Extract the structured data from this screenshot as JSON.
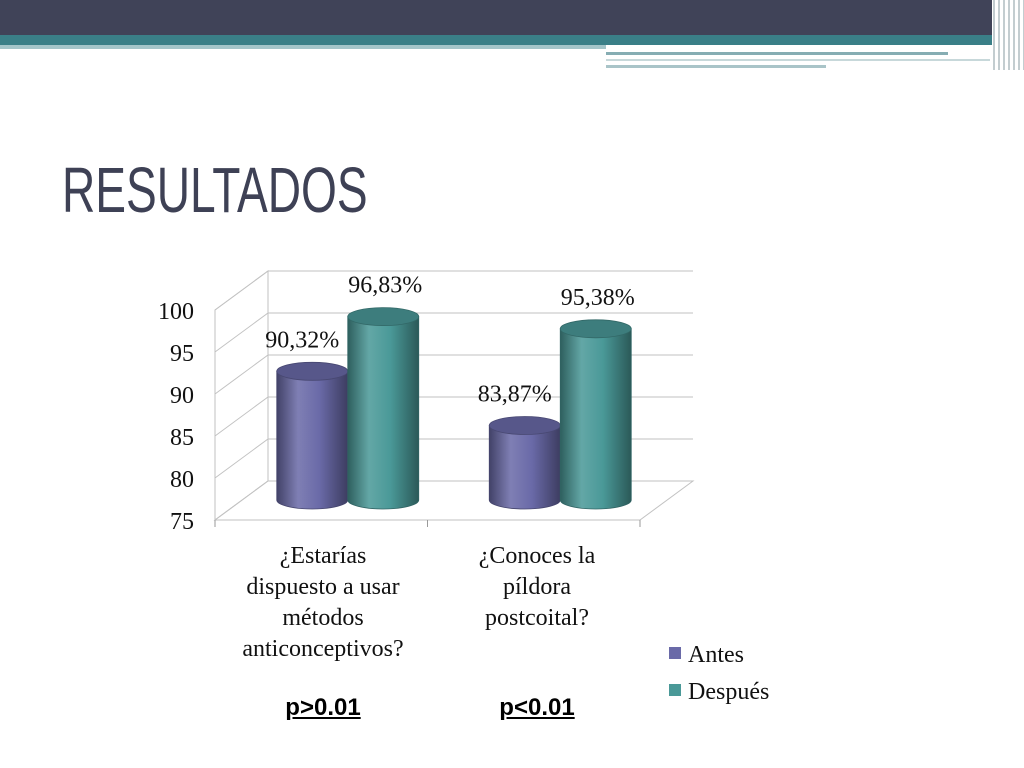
{
  "theme": {
    "title_color": "#3e4155",
    "band_dark": "#404358",
    "band_teal": "#3a7f87"
  },
  "slide": {
    "title": "RESULTADOS"
  },
  "chart_data": {
    "type": "bar",
    "style": "3d-cylinder",
    "categories": [
      "¿Estarías dispuesto a usar métodos anticonceptivos?",
      "¿Conoces la píldora postcoital?"
    ],
    "series": [
      {
        "name": "Antes",
        "values": [
          90.32,
          83.87
        ],
        "labels": [
          "90,32%",
          "83,87%"
        ],
        "color": "#6a6aa8"
      },
      {
        "name": "Después",
        "values": [
          96.83,
          95.38
        ],
        "labels": [
          "96,83%",
          "95,38%"
        ],
        "color": "#4a9998"
      }
    ],
    "ylim": [
      75,
      100
    ],
    "yticks": [
      75,
      80,
      85,
      90,
      95,
      100
    ],
    "grid": true,
    "legend": "right",
    "annotations": [
      "p>0.01",
      "p<0.01"
    ]
  }
}
